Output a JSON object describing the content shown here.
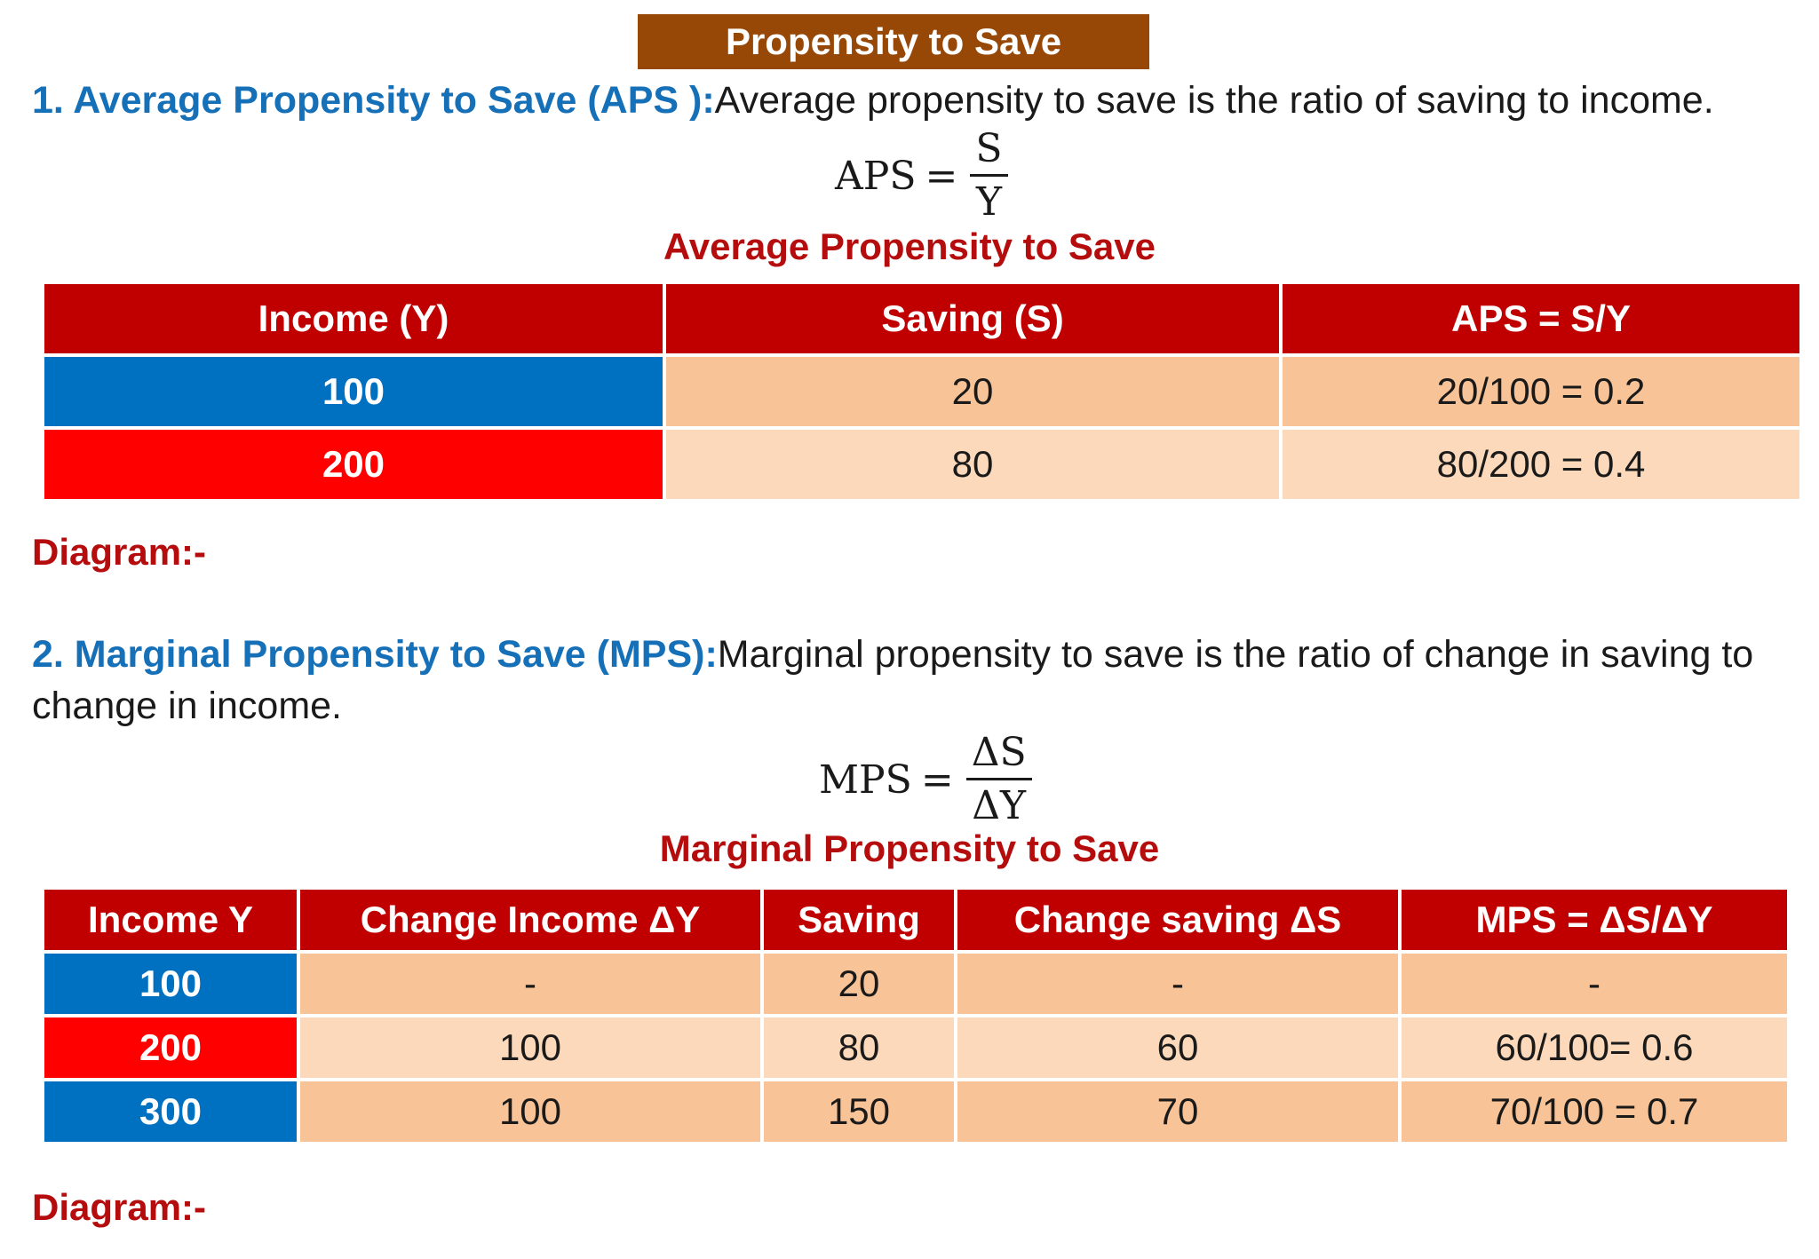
{
  "page_title": "Propensity to Save",
  "aps_section": {
    "heading": "1. Average Propensity to Save (APS ):",
    "definition": "Average propensity to save is the ratio of saving to income.",
    "formula": {
      "lhs": "APS",
      "eq": "=",
      "numerator": "S",
      "denominator": "Y"
    },
    "table_caption": "Average Propensity to Save",
    "table": {
      "headers": [
        "Income (Y)",
        "Saving (S)",
        "APS = S/Y"
      ],
      "rows": [
        [
          "100",
          "20",
          "20/100 = 0.2"
        ],
        [
          "200",
          "80",
          "80/200 = 0.4"
        ]
      ]
    },
    "diagram_label": "Diagram:-"
  },
  "mps_section": {
    "heading": "2. Marginal Propensity to Save (MPS):",
    "definition_line1": "Marginal propensity to save is the ratio of change in saving to",
    "definition_line2": "change in income.",
    "formula": {
      "lhs": "MPS",
      "eq": "=",
      "numerator": "ΔS",
      "denominator": "ΔY"
    },
    "table_caption": "Marginal Propensity to Save",
    "table": {
      "headers": [
        "Income Y",
        "Change Income ΔY",
        "Saving",
        "Change saving ΔS",
        "MPS = ΔS/ΔY"
      ],
      "rows": [
        [
          "100",
          "-",
          "20",
          "-",
          "-"
        ],
        [
          "200",
          "100",
          "80",
          "60",
          "60/100= 0.6"
        ],
        [
          "300",
          "100",
          "150",
          "70",
          "70/100 = 0.7"
        ]
      ]
    },
    "diagram_label": "Diagram:-"
  },
  "colors": {
    "title_bg": "#974806",
    "heading_blue": "#1670b8",
    "caption_red": "#b50d0d",
    "header_red": "#c00000",
    "cell_blue": "#0070c0",
    "cell_red": "#ff0000",
    "cell_peach_dark": "#f8c397",
    "cell_peach_light": "#fbd9ba"
  }
}
